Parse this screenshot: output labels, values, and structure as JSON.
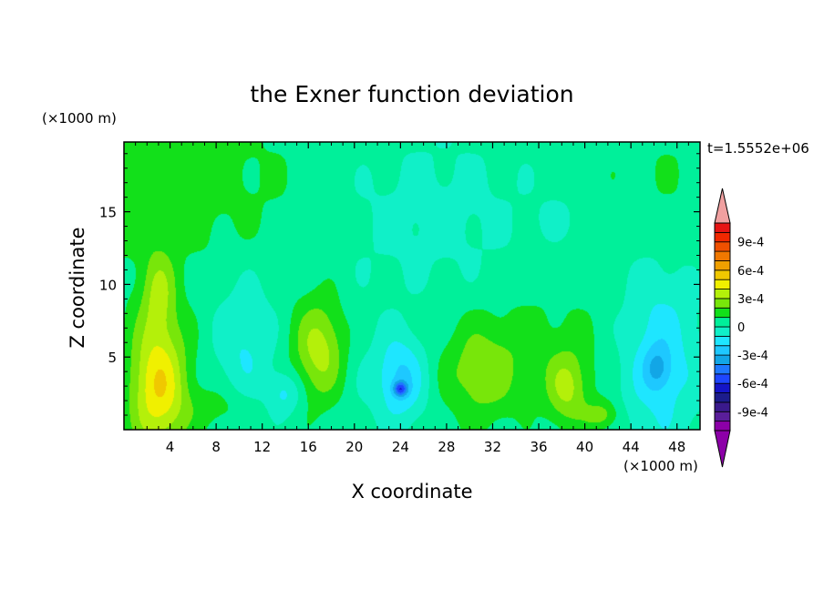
{
  "chart_data": {
    "type": "heatmap",
    "title": "the Exner function deviation",
    "xlabel": "X coordinate",
    "ylabel": "Z coordinate",
    "x_unit": "(×1000 m)",
    "y_unit": "(×1000 m)",
    "time_label": "t=1.5552e+06",
    "xlim": [
      0,
      50
    ],
    "ylim": [
      0,
      19.8
    ],
    "x_ticks": [
      4,
      8,
      12,
      16,
      20,
      24,
      28,
      32,
      36,
      40,
      44,
      48
    ],
    "y_ticks": [
      5,
      10,
      15
    ],
    "colorbar": {
      "tick_labels": [
        "9e-4",
        "6e-4",
        "3e-4",
        "0",
        "-3e-4",
        "-6e-4",
        "-9e-4"
      ],
      "tick_values": [
        0.0009,
        0.0006,
        0.0003,
        0,
        -0.0003,
        -0.0006,
        -0.0009
      ],
      "levels": [
        -0.0011,
        -0.001,
        -0.0009,
        -0.0008,
        -0.0007,
        -0.0006,
        -0.0005,
        -0.0004,
        -0.0003,
        -0.0002,
        -0.0001,
        0,
        0.0001,
        0.0002,
        0.0003,
        0.0004,
        0.0005,
        0.0006,
        0.0007,
        0.0008,
        0.0009,
        0.001,
        0.0011
      ],
      "colors": [
        "#8c00a8",
        "#5a1e9a",
        "#3a1a8c",
        "#1c1c8c",
        "#1414c8",
        "#1e46ff",
        "#1e78ff",
        "#12a6e6",
        "#1ec8ff",
        "#1ee6ff",
        "#10f0c8",
        "#00f09a",
        "#12e01a",
        "#78e60a",
        "#b4f00a",
        "#f0f000",
        "#f0c800",
        "#f0a000",
        "#f07800",
        "#f05000",
        "#f02800",
        "#e61414"
      ],
      "under_color": "#8c00a8",
      "over_color": "#f0a0a0"
    },
    "field": {
      "background": 5e-05,
      "features": [
        {
          "x": 3,
          "z": 17,
          "rx": 15,
          "rz": 6,
          "v": 0.0001
        },
        {
          "x": 47,
          "z": 17,
          "rx": 6,
          "rz": 6,
          "v": 5e-05
        },
        {
          "x": 26,
          "z": 15,
          "rx": 10,
          "rz": 6,
          "v": -9e-05
        },
        {
          "x": 37.5,
          "z": 14.5,
          "rx": 1.3,
          "rz": 1.2,
          "v": -0.0001
        },
        {
          "x": 3,
          "z": 3,
          "rx": 2.5,
          "rz": 4.5,
          "v": 0.00045
        },
        {
          "x": 3,
          "z": 9.5,
          "rx": 1.5,
          "rz": 3,
          "v": 0.00022
        },
        {
          "x": 10.5,
          "z": 6,
          "rx": 2.6,
          "rz": 4.5,
          "v": -0.00016
        },
        {
          "x": 17,
          "z": 5.5,
          "rx": 2.3,
          "rz": 3.5,
          "v": 0.0003
        },
        {
          "x": 14,
          "z": 2.5,
          "rx": 1.5,
          "rz": 1.5,
          "v": -0.00018
        },
        {
          "x": 20,
          "z": 4,
          "rx": 2,
          "rz": 4,
          "v": -4e-05
        },
        {
          "x": 24,
          "z": 3.5,
          "rx": 2.2,
          "rz": 3,
          "v": -0.00028
        },
        {
          "x": 24,
          "z": 2.8,
          "rx": 0.6,
          "rz": 0.5,
          "v": -0.0004
        },
        {
          "x": 31,
          "z": 3.8,
          "rx": 3.2,
          "rz": 3.2,
          "v": 0.0002
        },
        {
          "x": 36,
          "z": 6,
          "rx": 7,
          "rz": 4,
          "v": 8e-05
        },
        {
          "x": 38.5,
          "z": 2.8,
          "rx": 1.8,
          "rz": 2.5,
          "v": 0.00025
        },
        {
          "x": 41.5,
          "z": 1,
          "rx": 1.5,
          "rz": 1,
          "v": 0.0002
        },
        {
          "x": 46.5,
          "z": 5,
          "rx": 3.5,
          "rz": 6.5,
          "v": -0.00022
        },
        {
          "x": 46.3,
          "z": 4.2,
          "rx": 1.2,
          "rz": 1.5,
          "v": -0.0002
        },
        {
          "x": 8.5,
          "z": 1.5,
          "rx": 3,
          "rz": 1.5,
          "v": 0.0001
        }
      ]
    }
  }
}
